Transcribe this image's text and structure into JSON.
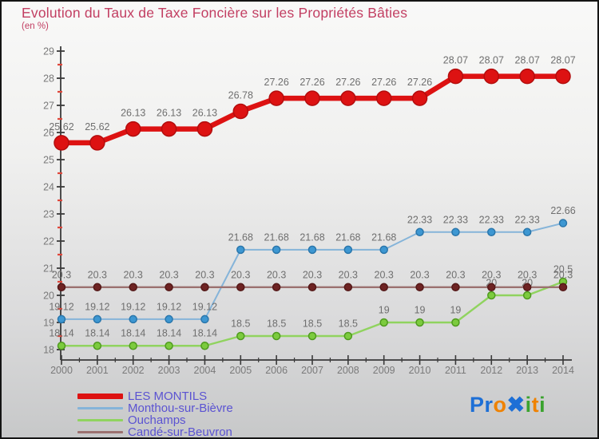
{
  "header": {
    "title": "Evolution du Taux de Taxe Foncière sur les Propriétés Bâties",
    "subtitle": "(en %)",
    "title_color": "#c23e62"
  },
  "colors": {
    "axis": "#3a3a3a",
    "tick_label": "#7a7a7a",
    "minor_tick": "#e0483c",
    "data_label": "#6f6f6f",
    "legend_text": "#5b53d2"
  },
  "chart_data": {
    "type": "line",
    "title": "Evolution du Taux de Taxe Foncière sur les Propriétés Bâties (en %)",
    "categories": [
      2000,
      2001,
      2002,
      2003,
      2004,
      2005,
      2006,
      2007,
      2008,
      2009,
      2010,
      2011,
      2012,
      2013,
      2014
    ],
    "ylim": [
      18,
      29
    ],
    "yticks": [
      18,
      19,
      20,
      21,
      22,
      23,
      24,
      25,
      26,
      27,
      28,
      29
    ],
    "grid": false,
    "legend_position": "bottom-left",
    "series": [
      {
        "name": "LES MONTILS",
        "line_color": "#dd1212",
        "marker_fill": "#dd1212",
        "marker_stroke": "#b30d0d",
        "line_width": 6.5,
        "marker_radius": 9,
        "swatch_height": 7,
        "values": [
          25.62,
          25.62,
          26.13,
          26.13,
          26.13,
          26.78,
          27.26,
          27.26,
          27.26,
          27.26,
          27.26,
          28.07,
          28.07,
          28.07,
          28.07
        ]
      },
      {
        "name": "Monthou-sur-Bièvre",
        "line_color": "#85b4d9",
        "marker_fill": "#3d97d2",
        "marker_stroke": "#2a76ab",
        "line_width": 2,
        "marker_radius": 4.5,
        "swatch_height": 3,
        "values": [
          19.12,
          19.12,
          19.12,
          19.12,
          19.12,
          21.68,
          21.68,
          21.68,
          21.68,
          21.68,
          22.33,
          22.33,
          22.33,
          22.33,
          22.66
        ]
      },
      {
        "name": "Ouchamps",
        "line_color": "#90d35f",
        "marker_fill": "#7ccb3e",
        "marker_stroke": "#4f9a1f",
        "line_width": 2.4,
        "marker_radius": 4.5,
        "swatch_height": 3,
        "values": [
          18.14,
          18.14,
          18.14,
          18.14,
          18.14,
          18.5,
          18.5,
          18.5,
          18.5,
          19,
          19,
          19,
          20,
          20,
          20.5
        ]
      },
      {
        "name": "Candé-sur-Beuvron",
        "line_color": "#9b7170",
        "marker_fill": "#6e2323",
        "marker_stroke": "#541818",
        "line_width": 2.4,
        "marker_radius": 4.5,
        "swatch_height": 3,
        "values": [
          20.3,
          20.3,
          20.3,
          20.3,
          20.3,
          20.3,
          20.3,
          20.3,
          20.3,
          20.3,
          20.3,
          20.3,
          20.3,
          20.3,
          20.3
        ]
      }
    ]
  },
  "logo": {
    "letters": [
      {
        "ch": "P",
        "color": "#1d6fd6"
      },
      {
        "ch": "r",
        "color": "#1d6fd6"
      },
      {
        "ch": "o",
        "color": "#ef8200"
      },
      {
        "ch": "✖",
        "color": "#1d6fd6"
      },
      {
        "ch": "i",
        "color": "#3aa32e"
      },
      {
        "ch": "t",
        "color": "#ef8200"
      },
      {
        "ch": "i",
        "color": "#3aa32e"
      }
    ]
  }
}
